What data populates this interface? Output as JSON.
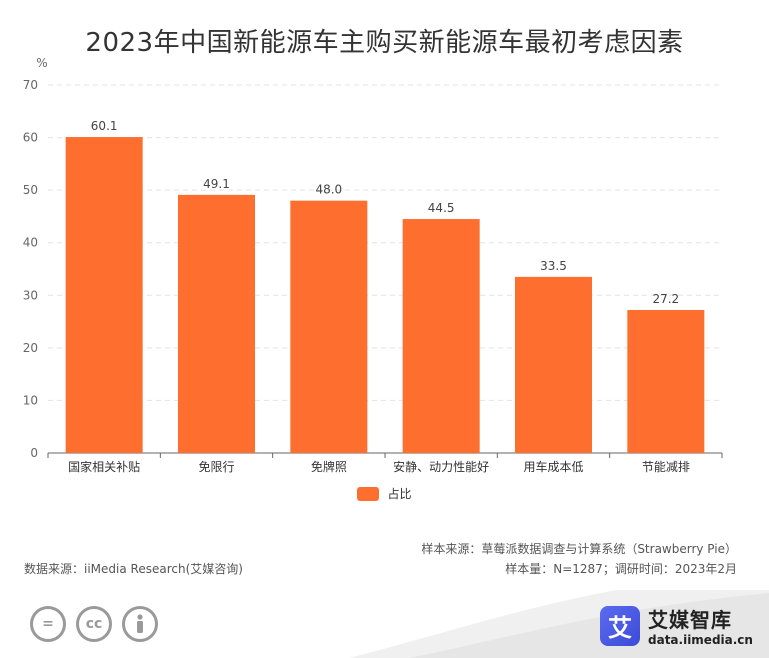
{
  "title": "2023年中国新能源车主购买新能源车最初考虑因素",
  "unit_label": "%",
  "legend_label": "占比",
  "colors": {
    "bar": "#fd6e2f",
    "grid": "#e3e3e3",
    "axis": "#666666"
  },
  "footer": {
    "sample_source": "样本来源：草莓派数据调查与计算系统（Strawberry Pie）",
    "data_source": "数据来源：iiMedia Research(艾媒咨询)",
    "sample_size": "样本量：N=1287；调研时间：2023年2月"
  },
  "brand": {
    "logo_char": "艾",
    "name": "艾媒智库",
    "url": "data.iimedia.cn"
  },
  "license_icons": [
    "equals-icon",
    "cc-icon",
    "person-icon"
  ],
  "chart_data": {
    "type": "bar",
    "categories": [
      "国家相关补贴",
      "免限行",
      "免牌照",
      "安静、动力性能好",
      "用车成本低",
      "节能减排"
    ],
    "series": [
      {
        "name": "占比",
        "values": [
          60.1,
          49.1,
          48.0,
          44.5,
          33.5,
          27.2
        ]
      }
    ],
    "data_labels": [
      "60.1",
      "49.1",
      "48.0",
      "44.5",
      "33.5",
      "27.2"
    ],
    "ylim": [
      0,
      70
    ],
    "yticks": [
      0,
      10,
      20,
      30,
      40,
      50,
      60,
      70
    ],
    "grid": true
  }
}
